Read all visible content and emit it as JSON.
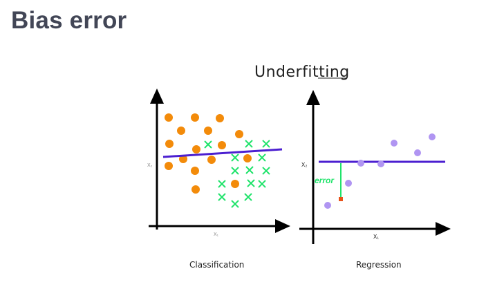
{
  "slide": {
    "title": "Bias error"
  },
  "figure": {
    "heading": "Underfitting",
    "left_panel": {
      "caption": "Classification",
      "x_axis_label": "X₁",
      "y_axis_label": "X₂",
      "class_a_color": "#f38b0a",
      "class_b_color": "#1fe36a",
      "boundary_color": "#4b1fd0"
    },
    "right_panel": {
      "caption": "Regression",
      "x_axis_label": "X₁",
      "y_axis_label": "X₂",
      "error_label": "error",
      "point_color": "#b095f2",
      "fit_line_color": "#4b1fd0",
      "error_color": "#1fe36a",
      "marker_color": "#e8521a"
    }
  }
}
